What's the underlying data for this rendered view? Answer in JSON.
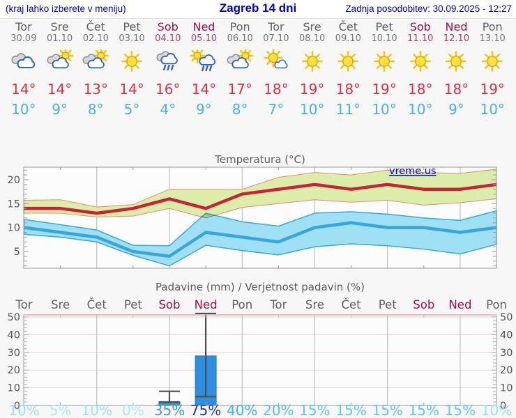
{
  "header": {
    "left_note": "(kraj lahko izberete v meniju)",
    "title": "Zagreb 14 dni",
    "updated": "Zadnja posodobitev: 30.09.2025 - 12:27"
  },
  "colors": {
    "link_blue": "#0000cc",
    "weekday_gray": "#5e5e5e",
    "weekend_red": "#ac0a4c",
    "tmax_red": "#dc2f3e",
    "tmin_blue": "#46b1ea",
    "line_red": "#c92237",
    "line_blue": "#38a5dd",
    "band_green": "#dcedaa",
    "band_blue": "#a0e0f5",
    "bar_blue": "#2e8fe0"
  },
  "days": [
    {
      "name": "Tor",
      "date": "30.09",
      "weekend": false,
      "icon": "cloudy",
      "tmax": "14°",
      "tmin": "10°",
      "prob": "10%",
      "prob_color": "#9be0f7"
    },
    {
      "name": "Sre",
      "date": "01.10",
      "weekend": false,
      "icon": "partly",
      "tmax": "14°",
      "tmin": "9°",
      "prob": "5%",
      "prob_color": "#ace8f9"
    },
    {
      "name": "Čet",
      "date": "02.10",
      "weekend": false,
      "icon": "partly",
      "tmax": "13°",
      "tmin": "8°",
      "prob": "10%",
      "prob_color": "#9be0f7"
    },
    {
      "name": "Pet",
      "date": "03.10",
      "weekend": false,
      "icon": "sunny",
      "tmax": "14°",
      "tmin": "5°",
      "prob": "0%",
      "prob_color": "#ace8f9"
    },
    {
      "name": "Sob",
      "date": "04.10",
      "weekend": true,
      "icon": "rain",
      "tmax": "16°",
      "tmin": "4°",
      "prob": "35%",
      "prob_color": "#4695cd"
    },
    {
      "name": "Ned",
      "date": "05.10",
      "weekend": true,
      "icon": "sun-rain",
      "tmax": "14°",
      "tmin": "9°",
      "prob": "75%",
      "prob_color": "#2336ae"
    },
    {
      "name": "Pon",
      "date": "06.10",
      "weekend": false,
      "icon": "partly",
      "tmax": "17°",
      "tmin": "8°",
      "prob": "40%",
      "prob_color": "#41b2ea"
    },
    {
      "name": "Tor",
      "date": "07.10",
      "weekend": false,
      "icon": "mostly-sunny",
      "tmax": "18°",
      "tmin": "7°",
      "prob": "20%",
      "prob_color": "#55c0ee"
    },
    {
      "name": "Sre",
      "date": "08.10",
      "weekend": false,
      "icon": "sunny",
      "tmax": "19°",
      "tmin": "10°",
      "prob": "15%",
      "prob_color": "#5fc8f0"
    },
    {
      "name": "Čet",
      "date": "09.10",
      "weekend": false,
      "icon": "sunny",
      "tmax": "18°",
      "tmin": "11°",
      "prob": "15%",
      "prob_color": "#5fc8f0"
    },
    {
      "name": "Pet",
      "date": "10.10",
      "weekend": false,
      "icon": "sunny",
      "tmax": "19°",
      "tmin": "10°",
      "prob": "15%",
      "prob_color": "#5fc8f0"
    },
    {
      "name": "Sob",
      "date": "11.10",
      "weekend": true,
      "icon": "sunny",
      "tmax": "18°",
      "tmin": "10°",
      "prob": "15%",
      "prob_color": "#5fc8f0"
    },
    {
      "name": "Ned",
      "date": "12.10",
      "weekend": true,
      "icon": "sunny",
      "tmax": "18°",
      "tmin": "9°",
      "prob": "15%",
      "prob_color": "#5fc8f0"
    },
    {
      "name": "Pon",
      "date": "13.10",
      "weekend": false,
      "icon": "sunny",
      "tmax": "19°",
      "tmin": "10°",
      "prob": "10%",
      "prob_color": "#9be0f7"
    }
  ],
  "chart_data": [
    {
      "type": "line",
      "title": "Temperatura (°C)",
      "watermark": "vreme.us",
      "categories": [
        "Tor",
        "Sre",
        "Čet",
        "Pet",
        "Sob",
        "Ned",
        "Pon",
        "Tor",
        "Sre",
        "Čet",
        "Pet",
        "Sob",
        "Ned",
        "Pon"
      ],
      "ylim": [
        1.5,
        22.6
      ],
      "yticks": [
        5,
        10,
        15,
        20
      ],
      "grid": "vertical-every-2-days",
      "legend_position": "none",
      "series": [
        {
          "name": "max_temp",
          "values": [
            14,
            14,
            13,
            14,
            16,
            14,
            17,
            18,
            19,
            18,
            19,
            18,
            18,
            19
          ]
        },
        {
          "name": "max_temp_band_high",
          "values": [
            15.7,
            15.8,
            14.3,
            14.8,
            18,
            18,
            18,
            20.5,
            21.5,
            21,
            22,
            21.5,
            21.3,
            22.2
          ]
        },
        {
          "name": "max_temp_band_low",
          "values": [
            13,
            13,
            12.2,
            12.4,
            14,
            12,
            14.2,
            15,
            15.8,
            15.3,
            15.7,
            14.7,
            15.2,
            16
          ]
        },
        {
          "name": "min_temp",
          "values": [
            10,
            9,
            8,
            5,
            4,
            9,
            8,
            7,
            10,
            11,
            10,
            10,
            9,
            10
          ]
        },
        {
          "name": "min_temp_band_high",
          "values": [
            11.7,
            10.6,
            9.5,
            6.3,
            6.2,
            13,
            11.2,
            10.3,
            13,
            13.3,
            12.8,
            12,
            11.5,
            13.5
          ]
        },
        {
          "name": "min_temp_band_low",
          "values": [
            8.6,
            8,
            7,
            4.2,
            2,
            6.3,
            5.2,
            4.3,
            6,
            6.6,
            6.2,
            5.5,
            4.5,
            6.5
          ]
        }
      ]
    },
    {
      "type": "bar",
      "title": "Padavine (mm) / Verjetnost padavin (%)",
      "categories": [
        "Tor",
        "Sre",
        "Čet",
        "Pet",
        "Sob",
        "Ned",
        "Pon",
        "Tor",
        "Sre",
        "Čet",
        "Pet",
        "Sob",
        "Ned",
        "Pon"
      ],
      "values_mm": [
        0,
        0,
        0,
        0,
        2,
        28,
        0,
        0,
        0,
        0,
        0,
        0,
        0,
        0
      ],
      "whiskers": [
        {
          "day_index": 4,
          "low": 2,
          "high": 8
        },
        {
          "day_index": 5,
          "low": 5,
          "high": 52
        }
      ],
      "probabilities_pct": [
        10,
        5,
        10,
        0,
        35,
        75,
        40,
        20,
        15,
        15,
        15,
        15,
        15,
        10
      ],
      "ylim": [
        0,
        51
      ],
      "yticks": [
        0,
        10,
        20,
        30,
        40,
        50
      ],
      "grid": "horizontal-pink-vertical-gray"
    }
  ]
}
